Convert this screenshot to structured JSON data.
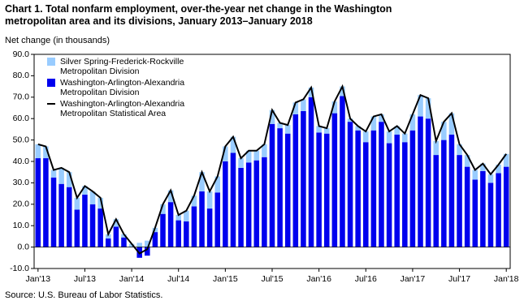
{
  "chart_data": {
    "type": "stacked-bar-line",
    "title": "Chart 1. Total nonfarm employment, over-the-year net change in the Washington metropolitan area and its divisions, January 2013–January 2018",
    "y_label": "Net change (in thousands)",
    "source": "Source: U.S. Bureau of Labor Statistics.",
    "categories": [
      "Jan'13",
      null,
      null,
      null,
      null,
      null,
      "Jul'13",
      null,
      null,
      null,
      null,
      null,
      "Jan'14",
      null,
      null,
      null,
      null,
      null,
      "Jul'14",
      null,
      null,
      null,
      null,
      null,
      "Jan'15",
      null,
      null,
      null,
      null,
      null,
      "Jul'15",
      null,
      null,
      null,
      null,
      null,
      "Jan'16",
      null,
      null,
      null,
      null,
      null,
      "Jul'16",
      null,
      null,
      null,
      null,
      null,
      "Jan'17",
      null,
      null,
      null,
      null,
      null,
      "Jul'17",
      null,
      null,
      null,
      null,
      null,
      "Jan'18"
    ],
    "series": [
      {
        "name": "Silver Spring-Frederick-Rockville Metropolitan Division",
        "color": "#99ccff",
        "kind": "bar",
        "values": [
          6.5,
          5.5,
          3.5,
          7.5,
          7,
          5.5,
          4,
          6,
          5,
          2,
          3.5,
          1.5,
          1.5,
          2,
          3,
          2,
          4.5,
          5.5,
          2.5,
          5,
          5,
          9,
          8,
          7.5,
          7,
          7.5,
          4.5,
          5.5,
          4.5,
          6,
          6.5,
          2.5,
          4,
          5.5,
          5.5,
          4.5,
          3,
          2.5,
          5.5,
          4.5,
          1.5,
          2,
          5,
          6.5,
          3.5,
          5.5,
          4,
          4,
          7.5,
          10,
          9.5,
          6.5,
          8.5,
          10,
          5,
          5.5,
          4.5,
          3.5,
          4,
          4,
          6
        ]
      },
      {
        "name": "Washington-Arlington-Alexandria Metropolitan Division",
        "color": "#0000ee",
        "kind": "bar",
        "values": [
          41.5,
          41.5,
          32.5,
          29.5,
          28,
          17.5,
          24.5,
          20,
          18,
          4,
          9.5,
          4.5,
          0,
          -5,
          -4,
          7,
          15.5,
          21,
          12.5,
          12,
          19,
          26,
          18,
          25.5,
          40,
          44,
          37,
          39.5,
          40.5,
          42,
          57.5,
          55.5,
          53,
          62,
          63.5,
          70,
          53.5,
          53,
          62.5,
          70.5,
          58.5,
          54.5,
          49,
          54.5,
          58.5,
          48.5,
          52.5,
          49,
          54.5,
          61,
          60,
          43,
          50,
          52.5,
          43,
          37.5,
          31.5,
          35.5,
          30,
          34.5,
          37.5
        ]
      },
      {
        "name": "Washington-Arlington-Alexandria Metropolitan Statistical Area",
        "color": "#000000",
        "kind": "line",
        "values": [
          48,
          47,
          36,
          37,
          35,
          23,
          28.5,
          26,
          23,
          6,
          13,
          6,
          1.5,
          -3,
          -1,
          9,
          20,
          26.5,
          15,
          17,
          24,
          35,
          26,
          33,
          47,
          51.5,
          41.5,
          45,
          45,
          48,
          64,
          58,
          57,
          67.5,
          69,
          74.5,
          56.5,
          55.5,
          68,
          75,
          60,
          56.5,
          54,
          61,
          62,
          54,
          56.5,
          53,
          62,
          71,
          69.5,
          49.5,
          58.5,
          62.5,
          48,
          43,
          36,
          39,
          34,
          38.5,
          43.5
        ]
      }
    ],
    "ylim": [
      -10,
      90
    ],
    "yticks": [
      {
        "value": -10,
        "label": "-10.0"
      },
      {
        "value": 0,
        "label": "0.0"
      },
      {
        "value": 10,
        "label": "10.0"
      },
      {
        "value": 20,
        "label": "20.0"
      },
      {
        "value": 30,
        "label": "30.0"
      },
      {
        "value": 40,
        "label": "40.0"
      },
      {
        "value": 50,
        "label": "50.0"
      },
      {
        "value": 60,
        "label": "60.0"
      },
      {
        "value": 70,
        "label": "70.0"
      },
      {
        "value": 80,
        "label": "80.0"
      },
      {
        "value": 90,
        "label": "90.0"
      }
    ],
    "grid": false,
    "legend": "upper left"
  }
}
